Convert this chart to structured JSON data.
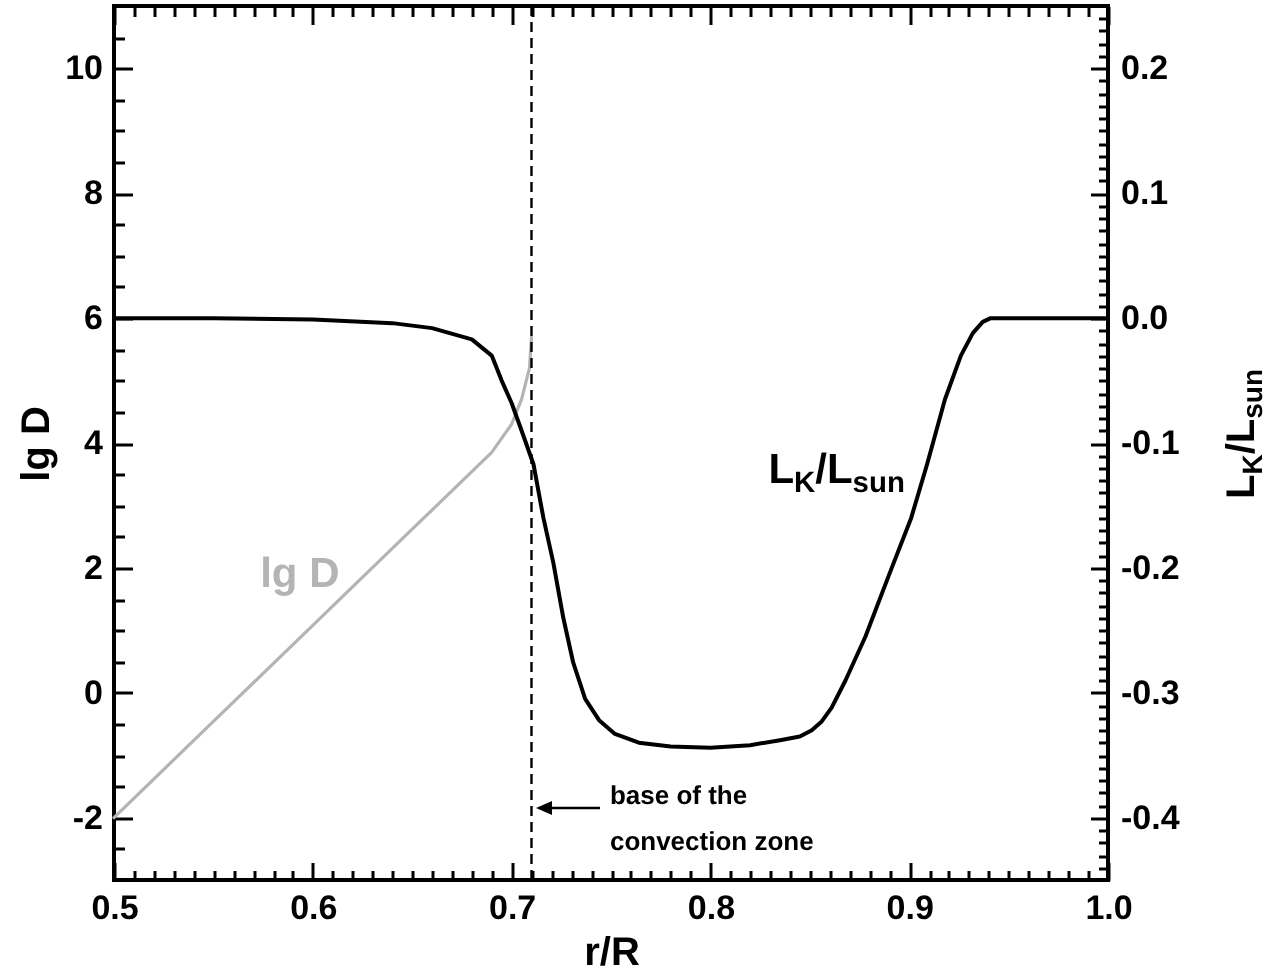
{
  "chart_data": {
    "type": "line",
    "xlabel": "r/R",
    "ylabel": "lg D",
    "y2label": "L$_{K}$/L$_{sun}$",
    "xlim": [
      0.5,
      1.0
    ],
    "ylim": [
      -3,
      11
    ],
    "y2lim": [
      -0.45,
      0.25
    ],
    "xticks": [
      0.5,
      {
        "value": 0.51,
        "label": null
      },
      {
        "value": 0.52,
        "label": null
      },
      {
        "value": 0.53,
        "label": null
      },
      {
        "value": 0.54,
        "label": null
      },
      {
        "value": 0.55,
        "label": null
      },
      {
        "value": 0.56,
        "label": null
      },
      {
        "value": 0.57,
        "label": null
      },
      {
        "value": 0.58,
        "label": null
      },
      {
        "value": 0.59,
        "label": null
      },
      0.6,
      {
        "value": 0.61,
        "label": null
      },
      {
        "value": 0.62,
        "label": null
      },
      {
        "value": 0.63,
        "label": null
      },
      {
        "value": 0.64,
        "label": null
      },
      {
        "value": 0.65,
        "label": null
      },
      {
        "value": 0.66,
        "label": null
      },
      {
        "value": 0.67,
        "label": null
      },
      {
        "value": 0.68,
        "label": null
      },
      {
        "value": 0.69,
        "label": null
      },
      0.7,
      {
        "value": 0.71,
        "label": null
      },
      {
        "value": 0.72,
        "label": null
      },
      {
        "value": 0.73,
        "label": null
      },
      {
        "value": 0.74,
        "label": null
      },
      {
        "value": 0.75,
        "label": null
      },
      {
        "value": 0.76,
        "label": null
      },
      {
        "value": 0.77,
        "label": null
      },
      {
        "value": 0.78,
        "label": null
      },
      {
        "value": 0.79,
        "label": null
      },
      0.8,
      {
        "value": 0.81,
        "label": null
      },
      {
        "value": 0.82,
        "label": null
      },
      {
        "value": 0.83,
        "label": null
      },
      {
        "value": 0.84,
        "label": null
      },
      {
        "value": 0.85,
        "label": null
      },
      {
        "value": 0.86,
        "label": null
      },
      {
        "value": 0.87,
        "label": null
      },
      {
        "value": 0.88,
        "label": null
      },
      {
        "value": 0.89,
        "label": null
      },
      0.9,
      {
        "value": 0.91,
        "label": null
      },
      {
        "value": 0.92,
        "label": null
      },
      {
        "value": 0.93,
        "label": null
      },
      {
        "value": 0.94,
        "label": null
      },
      {
        "value": 0.95,
        "label": null
      },
      {
        "value": 0.96,
        "label": null
      },
      {
        "value": 0.97,
        "label": null
      },
      {
        "value": 0.98,
        "label": null
      },
      {
        "value": 0.99,
        "label": null
      },
      {
        "value": 1.0,
        "label": "1.0"
      }
    ],
    "yticks": [
      {
        "value": -2.5,
        "label": null
      },
      -2,
      {
        "value": -1.5,
        "label": null
      },
      {
        "value": -1,
        "label": null
      },
      {
        "value": -0.5,
        "label": null
      },
      0,
      {
        "value": 0.5,
        "label": null
      },
      {
        "value": 1,
        "label": null
      },
      {
        "value": 1.5,
        "label": null
      },
      2,
      {
        "value": 2.5,
        "label": null
      },
      {
        "value": 3,
        "label": null
      },
      {
        "value": 3.5,
        "label": null
      },
      4,
      {
        "value": 4.5,
        "label": null
      },
      {
        "value": 5,
        "label": null
      },
      {
        "value": 5.5,
        "label": null
      },
      6,
      {
        "value": 6.5,
        "label": null
      },
      {
        "value": 7,
        "label": null
      },
      {
        "value": 7.5,
        "label": null
      },
      8,
      {
        "value": 8.5,
        "label": null
      },
      {
        "value": 9,
        "label": null
      },
      {
        "value": 9.5,
        "label": null
      },
      10,
      {
        "value": 10.5,
        "label": null
      }
    ],
    "y2ticks": [
      {
        "value": -0.44,
        "label": null
      },
      {
        "value": -0.43,
        "label": null
      },
      {
        "value": -0.42,
        "label": null
      },
      {
        "value": -0.41,
        "label": null
      },
      -0.4,
      {
        "value": -0.39,
        "label": null
      },
      {
        "value": -0.38,
        "label": null
      },
      {
        "value": -0.37,
        "label": null
      },
      {
        "value": -0.36,
        "label": null
      },
      {
        "value": -0.35,
        "label": null
      },
      {
        "value": -0.34,
        "label": null
      },
      {
        "value": -0.33,
        "label": null
      },
      {
        "value": -0.32,
        "label": null
      },
      {
        "value": -0.31,
        "label": null
      },
      -0.3,
      {
        "value": -0.29,
        "label": null
      },
      {
        "value": -0.28,
        "label": null
      },
      {
        "value": -0.27,
        "label": null
      },
      {
        "value": -0.26,
        "label": null
      },
      {
        "value": -0.25,
        "label": null
      },
      {
        "value": -0.24,
        "label": null
      },
      {
        "value": -0.23,
        "label": null
      },
      {
        "value": -0.22,
        "label": null
      },
      {
        "value": -0.21,
        "label": null
      },
      -0.2,
      {
        "value": -0.19,
        "label": null
      },
      {
        "value": -0.18,
        "label": null
      },
      {
        "value": -0.17,
        "label": null
      },
      {
        "value": -0.16,
        "label": null
      },
      {
        "value": -0.15,
        "label": null
      },
      {
        "value": -0.14,
        "label": null
      },
      {
        "value": -0.13,
        "label": null
      },
      {
        "value": -0.12,
        "label": null
      },
      {
        "value": -0.11,
        "label": null
      },
      -0.1,
      {
        "value": -0.09,
        "label": null
      },
      {
        "value": -0.08,
        "label": null
      },
      {
        "value": -0.07,
        "label": null
      },
      {
        "value": -0.06,
        "label": null
      },
      {
        "value": -0.05,
        "label": null
      },
      {
        "value": -0.04,
        "label": null
      },
      {
        "value": -0.03,
        "label": null
      },
      {
        "value": -0.02,
        "label": null
      },
      {
        "value": -0.01,
        "label": null
      },
      {
        "value": 0,
        "label": "0.0"
      },
      {
        "value": 0.01,
        "label": null
      },
      {
        "value": 0.02,
        "label": null
      },
      {
        "value": 0.03,
        "label": null
      },
      {
        "value": 0.04,
        "label": null
      },
      {
        "value": 0.05,
        "label": null
      },
      {
        "value": 0.06,
        "label": null
      },
      {
        "value": 0.07,
        "label": null
      },
      {
        "value": 0.08,
        "label": null
      },
      {
        "value": 0.09,
        "label": null
      },
      0.1,
      {
        "value": 0.11,
        "label": null
      },
      {
        "value": 0.12,
        "label": null
      },
      {
        "value": 0.13,
        "label": null
      },
      {
        "value": 0.14,
        "label": null
      },
      {
        "value": 0.15,
        "label": null
      },
      {
        "value": 0.16,
        "label": null
      },
      {
        "value": 0.17,
        "label": null
      },
      {
        "value": 0.18,
        "label": null
      },
      {
        "value": 0.19,
        "label": null
      },
      0.2,
      {
        "value": 0.21,
        "label": null
      },
      {
        "value": 0.22,
        "label": null
      },
      {
        "value": 0.23,
        "label": null
      },
      {
        "value": 0.24,
        "label": null
      }
    ],
    "series": [
      {
        "name": "lg D",
        "color": "#b4b4b4",
        "x": [
          0.5,
          0.55,
          0.6,
          0.65,
          0.68,
          0.69,
          0.7,
          0.705,
          0.709,
          0.71
        ],
        "values": [
          -2,
          -0.46,
          1.08,
          2.62,
          3.54,
          3.85,
          4.3,
          4.7,
          5.2,
          5.7
        ]
      },
      {
        "name": "L$_{K}$/L$_{sun}$",
        "color": "#000000",
        "axis": "y2",
        "x": [
          0.5,
          0.55,
          0.6,
          0.64,
          0.66,
          0.68,
          0.69,
          0.695,
          0.7,
          0.705,
          0.711,
          0.716,
          0.721,
          0.726,
          0.731,
          0.737,
          0.744,
          0.752,
          0.764,
          0.78,
          0.8,
          0.82,
          0.835,
          0.845,
          0.851,
          0.856,
          0.861,
          0.868,
          0.878,
          0.89,
          0.901,
          0.909,
          0.918,
          0.926,
          0.932,
          0.937,
          0.941,
          0.97,
          1.0
        ],
        "values": [
          0,
          0,
          -0.001,
          -0.004,
          -0.008,
          -0.017,
          -0.03,
          -0.05,
          -0.068,
          -0.09,
          -0.117,
          -0.16,
          -0.196,
          -0.24,
          -0.276,
          -0.305,
          -0.322,
          -0.333,
          -0.34,
          -0.343,
          -0.344,
          -0.342,
          -0.338,
          -0.335,
          -0.33,
          -0.323,
          -0.312,
          -0.29,
          -0.255,
          -0.205,
          -0.16,
          -0.117,
          -0.065,
          -0.03,
          -0.012,
          -0.003,
          0,
          0,
          0
        ]
      }
    ],
    "ref_lines": [
      {
        "axis": "x",
        "value": 0.71,
        "color": "#000000",
        "line_style": "dashed"
      }
    ],
    "annotations": [
      "base of the\nconvection zone"
    ]
  }
}
